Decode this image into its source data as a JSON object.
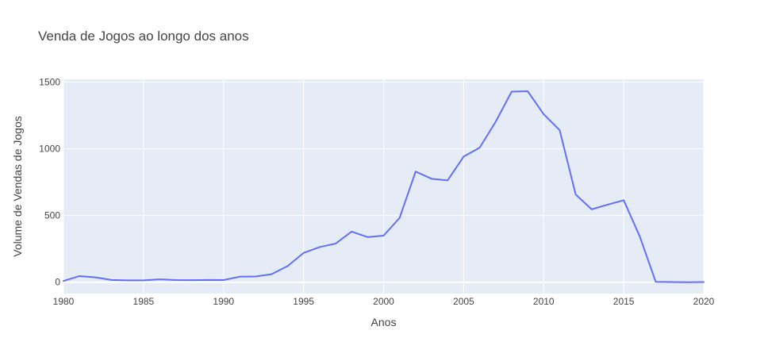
{
  "chart_data": {
    "type": "line",
    "title": "Venda de Jogos ao longo dos anos",
    "xlabel": "Anos",
    "ylabel": "Volume de Vendas de Jogos",
    "xlim": [
      1980,
      2020
    ],
    "ylim": [
      -85,
      1520
    ],
    "xticks": [
      1980,
      1985,
      1990,
      1995,
      2000,
      2005,
      2010,
      2015,
      2020
    ],
    "yticks": [
      0,
      500,
      1000,
      1500
    ],
    "grid": true,
    "legend": "none",
    "colors": {
      "line": "#636efa",
      "plot_background": "#e5ecf6",
      "grid": "#ffffff",
      "text": "#444444"
    },
    "series": [
      {
        "x": [
          1980,
          1981,
          1982,
          1983,
          1984,
          1985,
          1986,
          1987,
          1988,
          1989,
          1990,
          1991,
          1992,
          1993,
          1994,
          1995,
          1996,
          1997,
          1998,
          1999,
          2000,
          2001,
          2002,
          2003,
          2004,
          2005,
          2006,
          2007,
          2008,
          2009,
          2010,
          2011,
          2012,
          2013,
          2014,
          2015,
          2016,
          2017,
          2018,
          2019,
          2020
        ],
        "y": [
          9,
          46,
          36,
          17,
          14,
          14,
          21,
          16,
          15,
          17,
          16,
          41,
          43,
          60,
          121,
          219,
          263,
          289,
          379,
          338,
          349,
          482,
          829,
          775,
          763,
          941,
          1008,
          1202,
          1428,
          1431,
          1259,
          1139,
          657,
          546,
          581,
          614,
          344,
          3,
          1,
          0,
          1
        ]
      }
    ]
  }
}
